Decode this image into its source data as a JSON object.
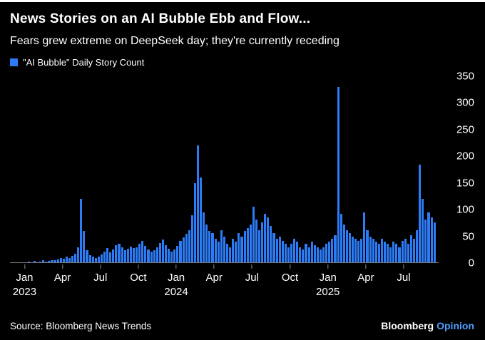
{
  "header": {
    "title": "News Stories on an AI Bubble Ebb and Flow...",
    "subtitle": "Fears grew extreme on DeepSeek day; they're currently receding"
  },
  "legend": {
    "label": "\"AI Bubble\" Daily Story Count"
  },
  "footer": {
    "source": "Source: Bloomberg News Trends",
    "brand": "Bloomberg",
    "brand_suffix": "Opinion",
    "brand_accent": "#4e9eff"
  },
  "chart_data": {
    "type": "bar",
    "title": "News Stories on an AI Bubble Ebb and Flow...",
    "subtitle": "Fears grew extreme on DeepSeek day; they're currently receding",
    "series_name": "\"AI Bubble\" Daily Story Count",
    "x_unit": "weekly aggregate, Dec 2022 - Sep 2025",
    "ylim": [
      0,
      350
    ],
    "y_ticks": [
      350,
      300,
      250,
      200,
      150,
      100,
      50,
      0
    ],
    "grid": false,
    "legend_position": "top-left",
    "bar_color": "#2d7cf7",
    "x_ticks": [
      {
        "label": "Jan",
        "year": "2023",
        "week": 5
      },
      {
        "label": "Apr",
        "week": 18
      },
      {
        "label": "Jul",
        "week": 31
      },
      {
        "label": "Oct",
        "week": 44
      },
      {
        "label": "Jan",
        "year": "2024",
        "week": 57
      },
      {
        "label": "Apr",
        "week": 70
      },
      {
        "label": "Jul",
        "week": 83
      },
      {
        "label": "Oct",
        "week": 96
      },
      {
        "label": "Jan",
        "year": "2025",
        "week": 109
      },
      {
        "label": "Apr",
        "week": 122
      },
      {
        "label": "Jul",
        "week": 135
      }
    ],
    "values": [
      1,
      2,
      1,
      2,
      2,
      1,
      3,
      2,
      4,
      2,
      3,
      5,
      3,
      4,
      6,
      5,
      7,
      9,
      8,
      12,
      10,
      14,
      18,
      30,
      120,
      60,
      24,
      15,
      12,
      10,
      12,
      16,
      22,
      28,
      20,
      26,
      33,
      36,
      30,
      24,
      27,
      31,
      28,
      30,
      36,
      42,
      32,
      26,
      21,
      24,
      30,
      38,
      44,
      34,
      27,
      22,
      26,
      32,
      42,
      48,
      55,
      62,
      90,
      150,
      220,
      160,
      95,
      72,
      60,
      56,
      46,
      40,
      62,
      50,
      36,
      30,
      46,
      40,
      56,
      50,
      60,
      66,
      72,
      105,
      82,
      62,
      76,
      92,
      86,
      70,
      56,
      46,
      50,
      42,
      36,
      30,
      36,
      46,
      40,
      30,
      26,
      36,
      30,
      40,
      34,
      30,
      26,
      30,
      36,
      40,
      46,
      52,
      330,
      92,
      72,
      62,
      56,
      50,
      46,
      42,
      46,
      95,
      62,
      50,
      46,
      40,
      36,
      46,
      40,
      36,
      30,
      40,
      36,
      30,
      42,
      46,
      36,
      52,
      46,
      62,
      185,
      120,
      82,
      95,
      86,
      76
    ]
  }
}
